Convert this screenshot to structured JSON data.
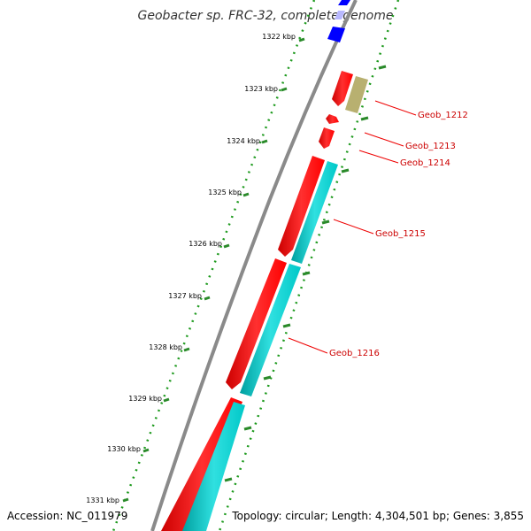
{
  "title": "Geobacter sp. FRC-32, complete genome",
  "accession": "Accession: NC_011979",
  "topology": "Topology: circular; Length: 4,304,501 bp; Genes: 3,855",
  "kbp_labels": [
    "1322 kbp",
    "1323 kbp",
    "1324 kbp",
    "1325 kbp",
    "1326 kbp",
    "1327 kbp",
    "1328 kbp",
    "1329 kbp",
    "1330 kbp",
    "1331 kbp"
  ],
  "gene_labels": [
    "Geob_1212",
    "Geob_1213",
    "Geob_1214",
    "Geob_1215",
    "Geob_1216"
  ],
  "colors": {
    "backbone": "#8a8a8a",
    "forward_cds": "#ff0000",
    "reverse_cds": "#00c8c8",
    "blue_feature": "#0000ff",
    "pale_blue_feature": "#b8b8ff",
    "khaki_feature": "#b8b070",
    "tick_green": "#228b22",
    "label_red": "#cc0000"
  }
}
